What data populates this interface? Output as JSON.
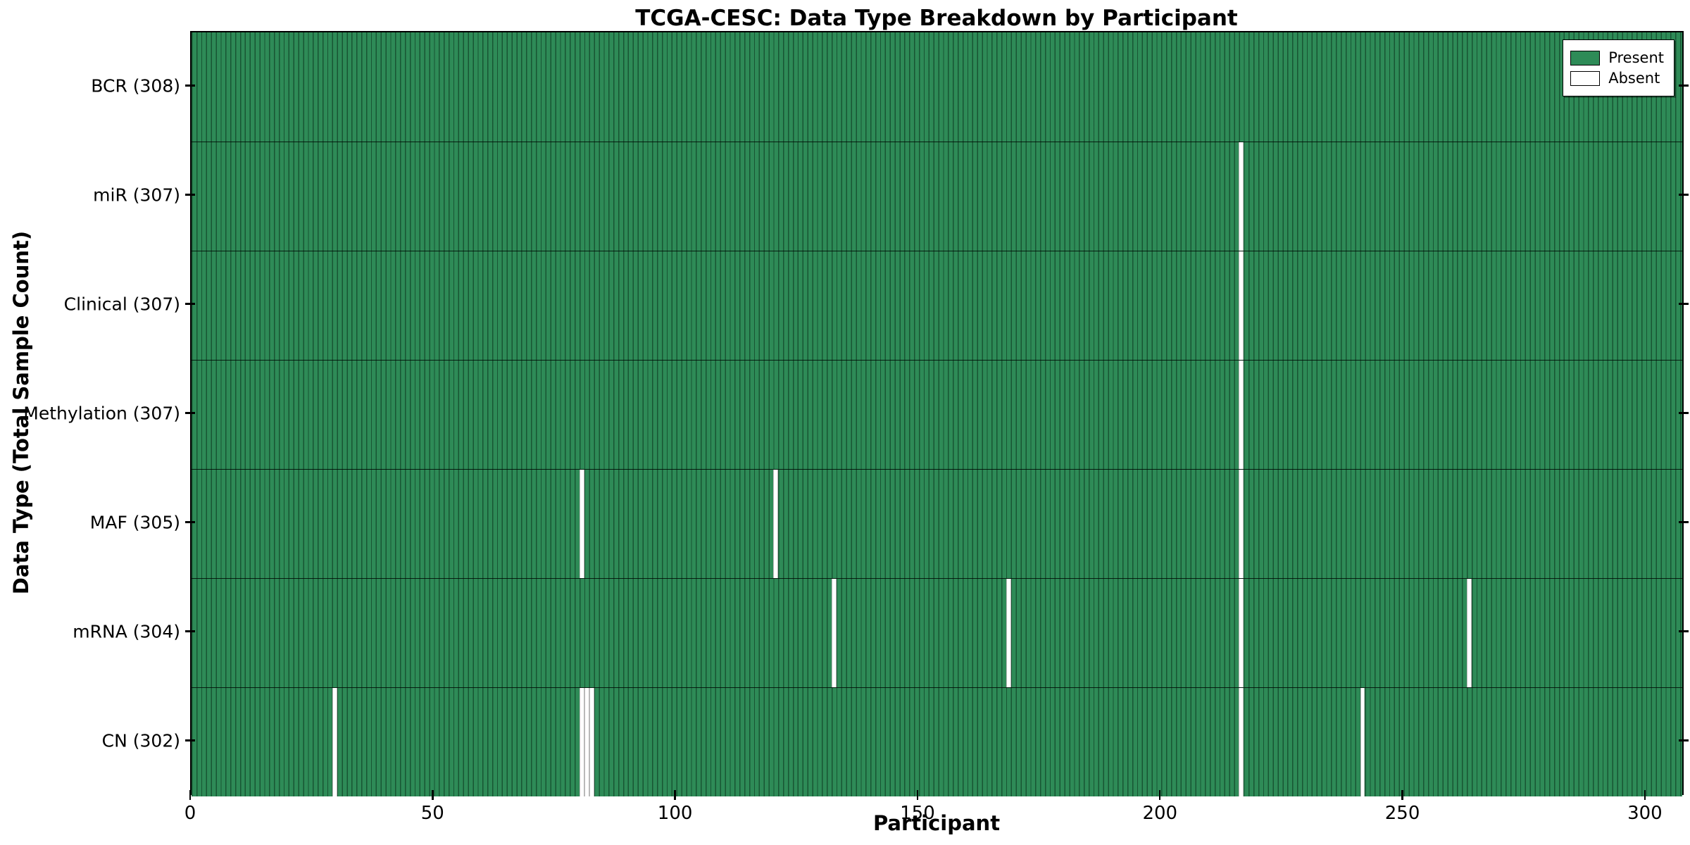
{
  "chart_data": {
    "type": "heatmap",
    "title": "TCGA-CESC: Data Type Breakdown by Participant",
    "xlabel": "Participant",
    "ylabel": "Data Type (Total Sample Count)",
    "n_participants": 308,
    "xlim": [
      0,
      308
    ],
    "x_ticks": [
      0,
      50,
      100,
      150,
      200,
      250,
      300
    ],
    "grid": false,
    "legend_position": "upper right",
    "legend": {
      "present_label": "Present",
      "absent_label": "Absent"
    },
    "colors": {
      "present": "#2e8b57",
      "absent": "#ffffff",
      "spine": "#000000"
    },
    "rows": [
      {
        "data_type": "BCR",
        "total": 308,
        "label": "BCR (308)",
        "absent_participants": []
      },
      {
        "data_type": "miR",
        "total": 307,
        "label": "miR (307)",
        "absent_participants": [
          216
        ]
      },
      {
        "data_type": "Clinical",
        "total": 307,
        "label": "Clinical (307)",
        "absent_participants": [
          216
        ]
      },
      {
        "data_type": "Methylation",
        "total": 307,
        "label": "Methylation (307)",
        "absent_participants": [
          216
        ]
      },
      {
        "data_type": "MAF",
        "total": 305,
        "label": "MAF (305)",
        "absent_participants": [
          80,
          120,
          216
        ]
      },
      {
        "data_type": "mRNA",
        "total": 304,
        "label": "mRNA (304)",
        "absent_participants": [
          132,
          168,
          216,
          263
        ]
      },
      {
        "data_type": "CN",
        "total": 302,
        "label": "CN (302)",
        "absent_participants": [
          29,
          80,
          81,
          82,
          216,
          241
        ]
      }
    ]
  }
}
